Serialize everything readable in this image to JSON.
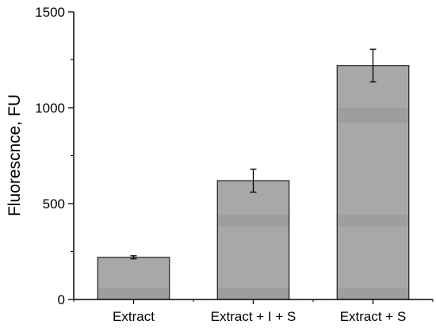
{
  "chart_data": {
    "type": "bar",
    "categories": [
      "Extract",
      "Extract + I + S",
      "Extract + S"
    ],
    "values": [
      220,
      620,
      1220
    ],
    "errors": [
      8,
      60,
      85
    ],
    "ylabel": "Fluorescnce, FU",
    "xlabel": "",
    "ylim": [
      0,
      1500
    ],
    "yticks": [
      0,
      500,
      1000,
      1500
    ],
    "ytick_labels": [
      "0",
      "500",
      "1000",
      "1500"
    ],
    "grid": false,
    "bar_color": "#a8a8a8",
    "bar_band_color": "#9e9e9e"
  }
}
